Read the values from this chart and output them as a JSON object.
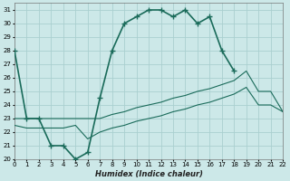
{
  "xlabel": "Humidex (Indice chaleur)",
  "background_color": "#cce8e8",
  "grid_color": "#aacfcf",
  "line_color": "#1a6b5a",
  "x_ticks": [
    0,
    1,
    2,
    3,
    4,
    5,
    6,
    7,
    8,
    9,
    10,
    11,
    12,
    13,
    14,
    15,
    16,
    17,
    18,
    19,
    20,
    21,
    22
  ],
  "y_ticks": [
    20,
    21,
    22,
    23,
    24,
    25,
    26,
    27,
    28,
    29,
    30,
    31
  ],
  "xlim": [
    0,
    22
  ],
  "ylim": [
    20,
    31.5
  ],
  "series": [
    {
      "x": [
        0,
        1,
        2,
        3,
        4,
        5,
        6,
        7,
        8,
        9,
        10,
        11,
        12,
        13,
        14,
        15,
        16,
        17,
        18
      ],
      "y": [
        28,
        23,
        23,
        21,
        21,
        20,
        20.5,
        24.5,
        28,
        30,
        30.5,
        31,
        31,
        30.5,
        31,
        30,
        30.5,
        28,
        26.5
      ]
    },
    {
      "x": [
        0,
        1,
        2,
        3,
        4,
        5,
        6,
        7,
        8,
        9,
        10,
        11,
        12,
        13,
        14,
        15,
        16,
        17,
        18,
        19,
        20,
        21,
        22
      ],
      "y": [
        23,
        23,
        23,
        23,
        23,
        23,
        23,
        23,
        23.3,
        23.5,
        23.8,
        24,
        24.2,
        24.5,
        24.7,
        25,
        25.2,
        25.5,
        25.8,
        26.5,
        25,
        25,
        23.5
      ]
    },
    {
      "x": [
        0,
        1,
        2,
        3,
        4,
        5,
        6,
        7,
        8,
        9,
        10,
        11,
        12,
        13,
        14,
        15,
        16,
        17,
        18,
        19,
        20,
        21,
        22
      ],
      "y": [
        22.5,
        22.3,
        22.3,
        22.3,
        22.3,
        22.5,
        21.5,
        22,
        22.3,
        22.5,
        22.8,
        23,
        23.2,
        23.5,
        23.7,
        24,
        24.2,
        24.5,
        24.8,
        25.3,
        24,
        24,
        23.5
      ]
    }
  ]
}
